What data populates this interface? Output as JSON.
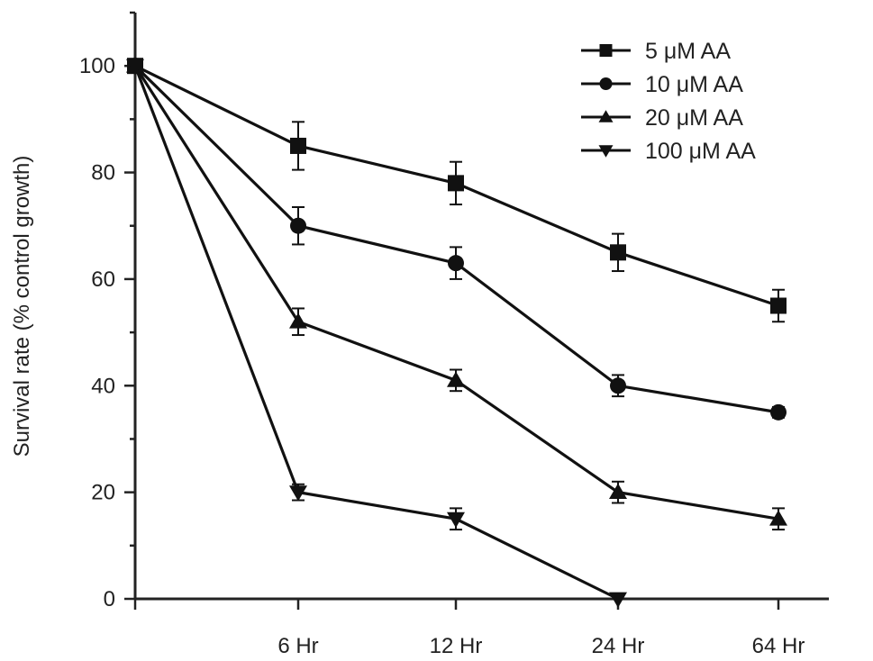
{
  "chart_data": {
    "type": "line",
    "title": "",
    "xlabel": "",
    "ylabel": "Survival rate (% control growth)",
    "x": [
      "0",
      "6 Hr",
      "12 Hr",
      "24 Hr",
      "64 Hr"
    ],
    "x_tick_labels": [
      "6 Hr",
      "12 Hr",
      "24 Hr",
      "64 Hr"
    ],
    "y_ticks": [
      0,
      20,
      40,
      60,
      80,
      100
    ],
    "ylim": [
      0,
      110
    ],
    "grid": false,
    "legend_position": "top-right",
    "colors": {
      "line": "#111111",
      "axis": "#222222"
    },
    "series": [
      {
        "name": "5 μM AA",
        "marker": "square",
        "values": [
          100,
          85,
          78,
          65,
          55
        ],
        "errors": [
          0,
          4.5,
          4,
          3.5,
          3
        ]
      },
      {
        "name": "10 μM AA",
        "marker": "circle",
        "values": [
          100,
          70,
          63,
          40,
          35
        ],
        "errors": [
          0,
          3.5,
          3,
          2,
          1
        ]
      },
      {
        "name": "20 μM AA",
        "marker": "triangle-up",
        "values": [
          100,
          52,
          41,
          20,
          15
        ],
        "errors": [
          0,
          2.5,
          2,
          2,
          2
        ]
      },
      {
        "name": "100 μM AA",
        "marker": "triangle-down",
        "values": [
          100,
          20,
          15,
          0,
          null
        ],
        "errors": [
          0,
          1.5,
          2,
          0,
          null
        ]
      }
    ]
  }
}
